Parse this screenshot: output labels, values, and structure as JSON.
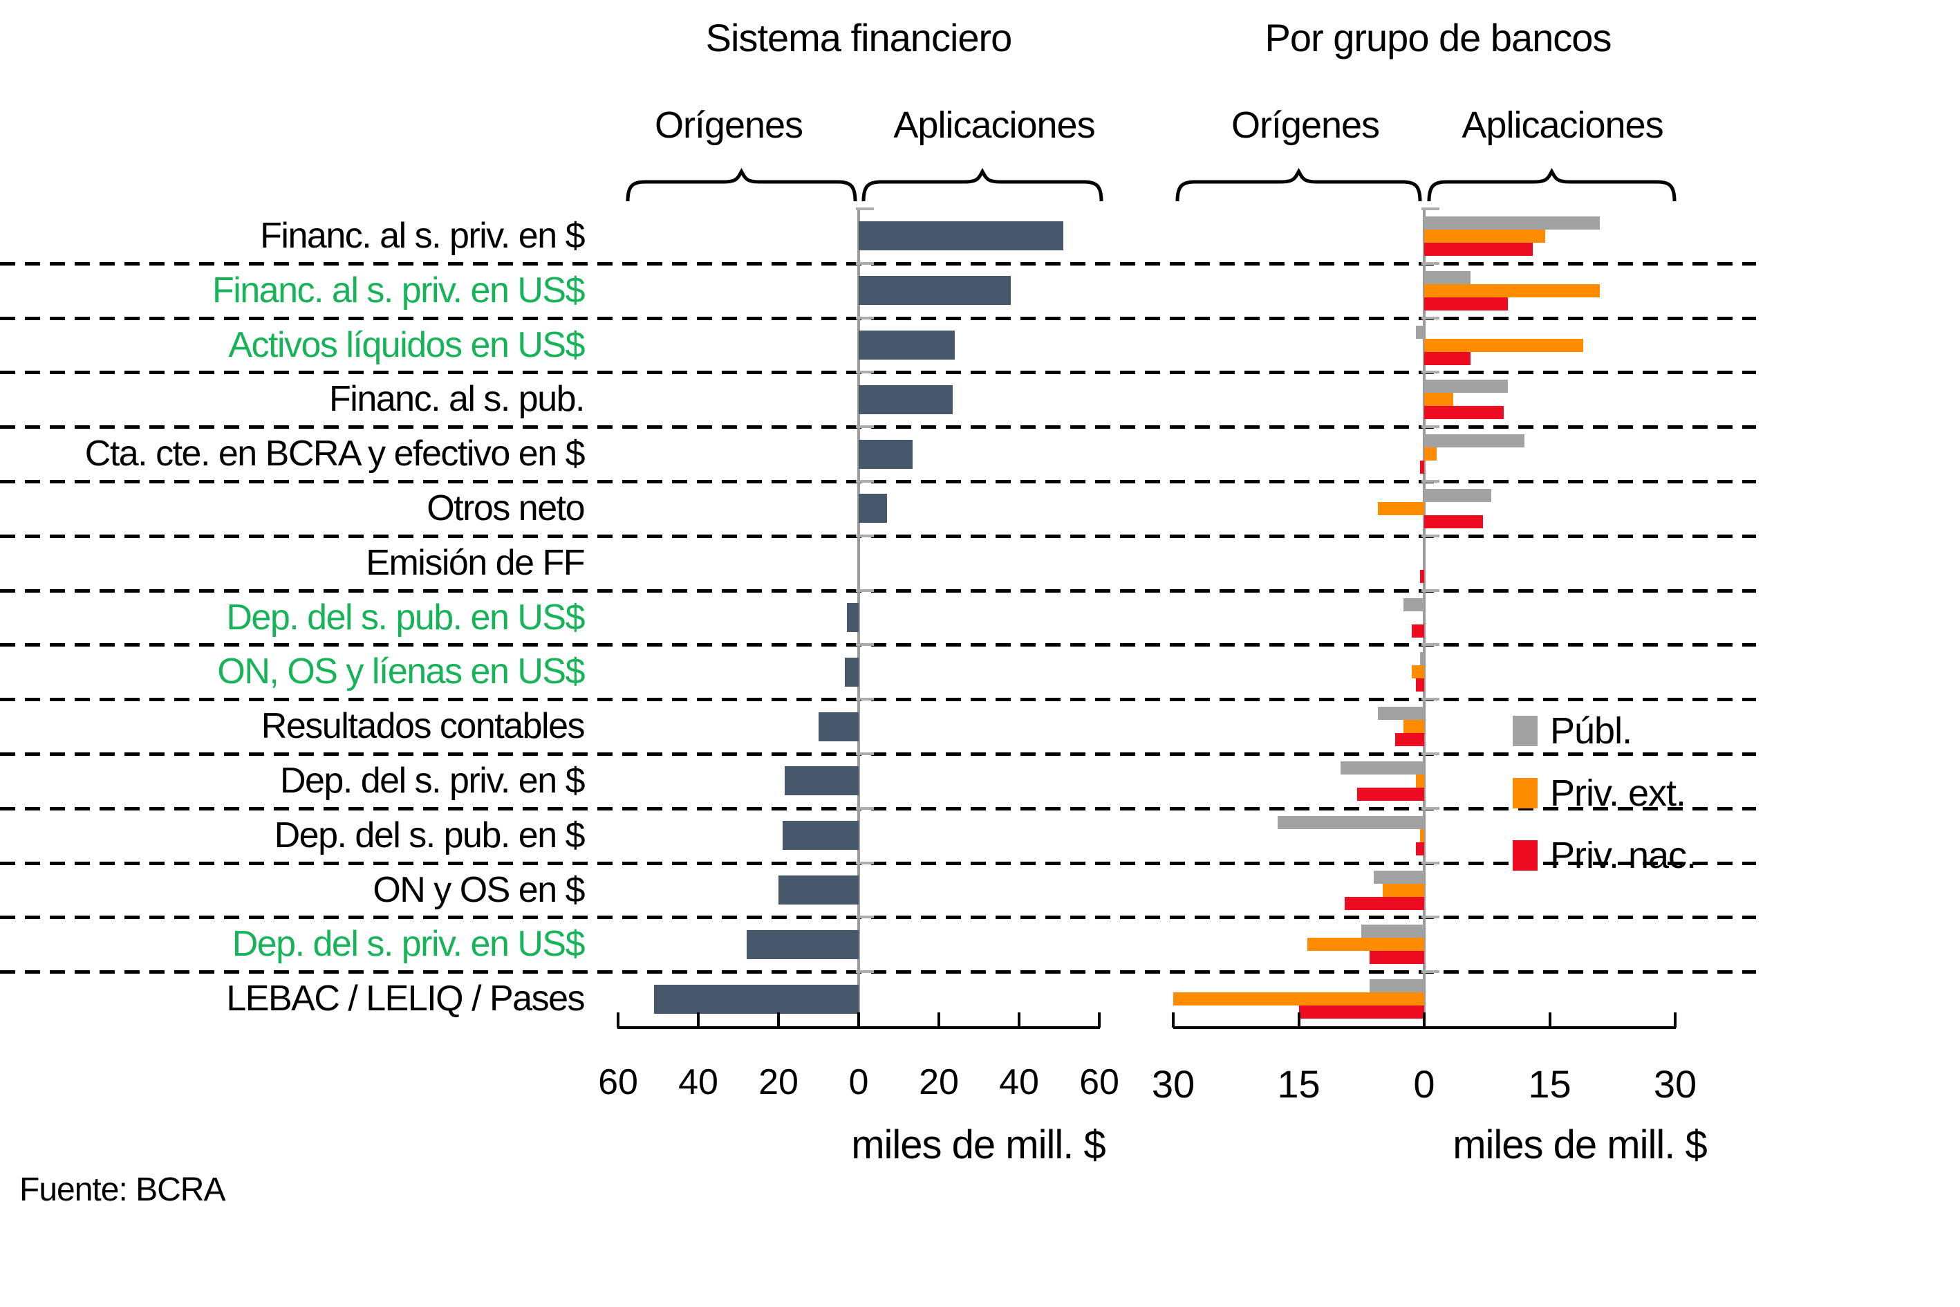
{
  "panels": [
    {
      "title": "Sistema financiero",
      "origenes": "Orígenes",
      "aplicaciones": "Aplicaciones",
      "unit": "miles de mill. $",
      "tick_labels": [
        "60",
        "40",
        "20",
        "0",
        "20",
        "40",
        "60"
      ],
      "tick_values": [
        -60,
        -40,
        -20,
        0,
        20,
        40,
        60
      ]
    },
    {
      "title": "Por grupo de bancos",
      "origenes": "Orígenes",
      "aplicaciones": "Aplicaciones",
      "unit": "miles de mill. $",
      "tick_labels": [
        "30",
        "15",
        "0",
        "15",
        "30"
      ],
      "tick_values": [
        -30,
        -15,
        0,
        15,
        30
      ]
    }
  ],
  "rows": [
    {
      "label": "Financ. al s. priv. en $",
      "green": false
    },
    {
      "label": "Financ. al s. priv. en US$",
      "green": true
    },
    {
      "label": "Activos líquidos en US$",
      "green": true
    },
    {
      "label": "Financ. al s. pub.",
      "green": false
    },
    {
      "label": "Cta. cte. en BCRA y efectivo en $",
      "green": false
    },
    {
      "label": "Otros neto",
      "green": false
    },
    {
      "label": "Emisión de FF",
      "green": false
    },
    {
      "label": "Dep. del s. pub. en US$",
      "green": true
    },
    {
      "label": "ON, OS y líenas en US$",
      "green": true
    },
    {
      "label": "Resultados contables",
      "green": false
    },
    {
      "label": "Dep. del s. priv. en $",
      "green": false
    },
    {
      "label": "Dep. del s. pub. en $",
      "green": false
    },
    {
      "label": "ON y OS en $",
      "green": false
    },
    {
      "label": "Dep. del s. priv. en US$",
      "green": true
    },
    {
      "label": "LEBAC / LELIQ / Pases",
      "green": false
    }
  ],
  "legend": {
    "items": [
      {
        "label": "Públ.",
        "color": "#A2A2A2"
      },
      {
        "label": "Priv. ext.",
        "color": "#FF8C00"
      },
      {
        "label": "Priv. nac.",
        "color": "#EE0C22"
      }
    ]
  },
  "source": "Fuente: BCRA",
  "colors": {
    "sistema_bar": "#47586D",
    "publ": "#A2A2A2",
    "priv_ext": "#FF8C00",
    "priv_nac": "#EE0C22",
    "green_label": "#16B358",
    "axis_gray": "#9B9B9B",
    "tick_gray": "#ACACAC"
  },
  "chart_data": [
    {
      "type": "bar",
      "orientation": "horizontal",
      "panel": "Sistema financiero",
      "xlabel": "miles de mill. $",
      "xlim": [
        -60,
        60
      ],
      "xticks": [
        -60,
        -40,
        -20,
        0,
        20,
        40,
        60
      ],
      "sections": {
        "negative": "Orígenes",
        "positive": "Aplicaciones"
      },
      "grid": "dashed-row-separators",
      "categories": [
        "Financ. al s. priv. en $",
        "Financ. al s. priv. en US$",
        "Activos líquidos en US$",
        "Financ. al s. pub.",
        "Cta. cte. en BCRA y efectivo en $",
        "Otros neto",
        "Emisión de FF",
        "Dep. del s. pub. en US$",
        "ON, OS y líenas en US$",
        "Resultados contables",
        "Dep. del s. priv. en $",
        "Dep. del s. pub. en $",
        "ON y OS en $",
        "Dep. del s. priv. en US$",
        "LEBAC / LELIQ / Pases"
      ],
      "series": [
        {
          "name": "Sistema financiero",
          "color": "#47586D",
          "values": [
            51,
            38,
            24,
            23.5,
            13.5,
            7,
            0,
            -3,
            -3.5,
            -10,
            -18.5,
            -19,
            -20,
            -28,
            -51
          ]
        }
      ]
    },
    {
      "type": "bar",
      "orientation": "horizontal",
      "panel": "Por grupo de bancos",
      "xlabel": "miles de mill. $",
      "xlim": [
        -30,
        30
      ],
      "xticks": [
        -30,
        -15,
        0,
        15,
        30
      ],
      "sections": {
        "negative": "Orígenes",
        "positive": "Aplicaciones"
      },
      "grid": "dashed-row-separators",
      "legend_position": "middle-right",
      "categories": [
        "Financ. al s. priv. en $",
        "Financ. al s. priv. en US$",
        "Activos líquidos en US$",
        "Financ. al s. pub.",
        "Cta. cte. en BCRA y efectivo en $",
        "Otros neto",
        "Emisión de FF",
        "Dep. del s. pub. en US$",
        "ON, OS y líenas en US$",
        "Resultados contables",
        "Dep. del s. priv. en $",
        "Dep. del s. pub. en $",
        "ON y OS en $",
        "Dep. del s. priv. en US$",
        "LEBAC / LELIQ / Pases"
      ],
      "series": [
        {
          "name": "Públ.",
          "color": "#A2A2A2",
          "values": [
            21,
            5.5,
            -1,
            10,
            12,
            8,
            0,
            -2.5,
            -0.5,
            -5.5,
            -10,
            -17.5,
            -6,
            -7.5,
            -6.5
          ]
        },
        {
          "name": "Priv. ext.",
          "color": "#FF8C00",
          "values": [
            14.5,
            21,
            19,
            3.5,
            1.5,
            -5.5,
            0,
            0,
            -1.5,
            -2.5,
            -1,
            -0.5,
            -5,
            -14,
            -30
          ]
        },
        {
          "name": "Priv. nac.",
          "color": "#EE0C22",
          "values": [
            13,
            10,
            5.5,
            9.5,
            -0.5,
            7,
            -0.5,
            -1.5,
            -1,
            -3.5,
            -8,
            -1,
            -9.5,
            -6.5,
            -15
          ]
        }
      ]
    }
  ]
}
